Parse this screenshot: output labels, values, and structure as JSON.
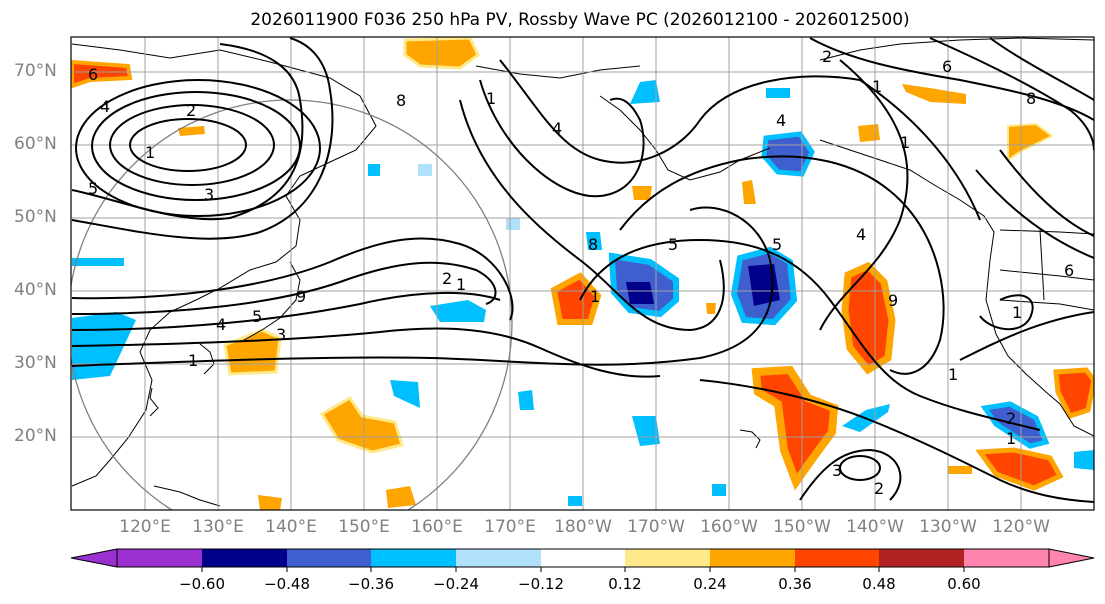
{
  "title": "2026011900 F036 250 hPa PV, Rossby Wave PC (2026012100 - 2026012500)",
  "map": {
    "latitude_labels": [
      "70°N",
      "60°N",
      "50°N",
      "40°N",
      "30°N",
      "20°N"
    ],
    "longitude_labels": [
      "120°E",
      "130°E",
      "140°E",
      "150°E",
      "160°E",
      "170°E",
      "180°W",
      "170°W",
      "160°W",
      "150°W",
      "140°W",
      "130°W",
      "120°W"
    ],
    "contour_labels": [
      "6",
      "4",
      "2",
      "1",
      "5",
      "3",
      "8",
      "1",
      "4",
      "2",
      "1",
      "6",
      "8",
      "1",
      "2",
      "5",
      "3",
      "1",
      "4",
      "9",
      "1",
      "8",
      "5",
      "4",
      "9",
      "1",
      "5",
      "4",
      "6",
      "1",
      "2",
      "2",
      "3",
      "1",
      "1"
    ]
  },
  "colorbar": {
    "ticks": [
      "−0.60",
      "−0.48",
      "−0.36",
      "−0.24",
      "−0.12",
      "0.12",
      "0.24",
      "0.36",
      "0.48",
      "0.60"
    ],
    "colors": [
      "#9b30d0",
      "#00008b",
      "#3f5fcf",
      "#00bfff",
      "#b0e0fa",
      "#ffffff",
      "#ffe98a",
      "#ffa500",
      "#ff4500",
      "#b22222",
      "#ff85b0"
    ]
  }
}
